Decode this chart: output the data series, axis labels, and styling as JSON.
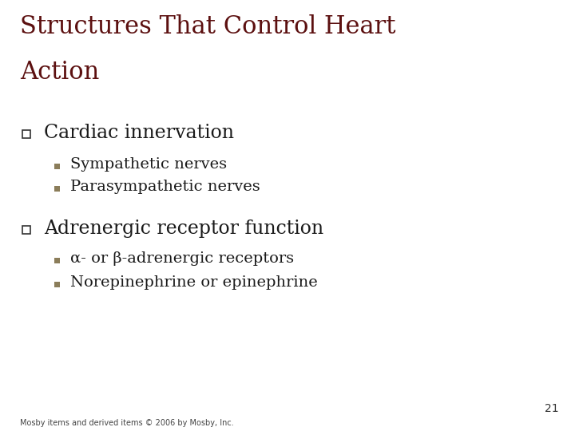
{
  "title_line1": "Structures That Control Heart",
  "title_line2": "Action",
  "title_color": "#5C1010",
  "background_color": "#FFFFFF",
  "bullet1_text": "Cardiac innervation",
  "bullet2_text": "Adrenergic receptor function",
  "sub1a": "Sympathetic nerves",
  "sub1b": "Parasympathetic nerves",
  "sub2a": "α- or β-adrenergic receptors",
  "sub2b": "Norepinephrine or epinephrine",
  "text_color": "#1a1a1a",
  "square_bullet_color": "#8B7D5A",
  "hollow_square_color": "#333333",
  "footer_text": "Mosby items and derived items © 2006 by Mosby, Inc.",
  "page_number": "21",
  "title_fontsize": 22,
  "bullet_fontsize": 17,
  "sub_fontsize": 14,
  "footer_fontsize": 7,
  "page_fontsize": 10
}
